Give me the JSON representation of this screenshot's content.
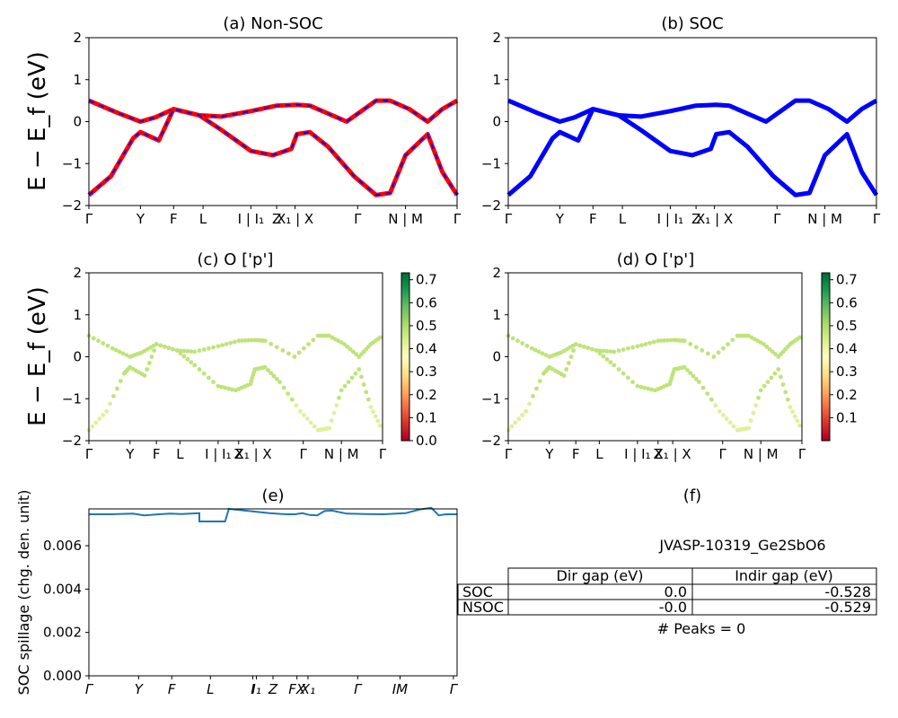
{
  "chart_data": [
    {
      "id": "a",
      "type": "line",
      "title": "(a) Non-SOC",
      "ylabel": "E − E_f (eV)",
      "ylim": [
        -2,
        2
      ],
      "yticks": [
        "2",
        "1",
        "0",
        "−1",
        "−2"
      ],
      "kpath_labels": [
        "Γ",
        "Y",
        "F",
        "L",
        "I | I₁",
        "Z",
        "X₁ | X",
        "Γ",
        "N | M",
        "Γ"
      ],
      "series": [
        {
          "name": "upper band",
          "color": "#ff0000",
          "dash_color": "#0000ff",
          "x": [
            0,
            0.08,
            0.14,
            0.18,
            0.23,
            0.3,
            0.36,
            0.44,
            0.51,
            0.565,
            0.6,
            0.7,
            0.78,
            0.818,
            0.87,
            0.92,
            0.96,
            1.0
          ],
          "y": [
            0.5,
            0.2,
            0.0,
            0.1,
            0.3,
            0.15,
            0.12,
            0.25,
            0.38,
            0.4,
            0.38,
            0.0,
            0.5,
            0.5,
            0.3,
            0.0,
            0.3,
            0.5
          ]
        },
        {
          "name": "lower band",
          "color": "#ff0000",
          "dash_color": "#0000ff",
          "x": [
            0,
            0.06,
            0.12,
            0.14,
            0.19,
            0.23,
            0.3,
            0.36,
            0.44,
            0.5,
            0.55,
            0.565,
            0.6,
            0.65,
            0.72,
            0.78,
            0.818,
            0.86,
            0.92,
            0.96,
            1.0
          ],
          "y": [
            -1.75,
            -1.3,
            -0.4,
            -0.25,
            -0.45,
            0.3,
            0.15,
            -0.2,
            -0.7,
            -0.8,
            -0.65,
            -0.3,
            -0.25,
            -0.6,
            -1.3,
            -1.75,
            -1.7,
            -0.8,
            -0.3,
            -1.2,
            -1.75
          ]
        }
      ]
    },
    {
      "id": "b",
      "type": "line",
      "title": "(b) SOC",
      "ylim": [
        -2,
        2
      ],
      "yticks": [
        "2",
        "1",
        "0",
        "−1",
        "−2"
      ],
      "kpath_labels": [
        "Γ",
        "Y",
        "F",
        "L",
        "I | I₁",
        "Z",
        "X₁ | X",
        "Γ",
        "N | M",
        "Γ"
      ],
      "series": [
        {
          "name": "upper band",
          "color": "#0000ff",
          "x": [
            0,
            0.08,
            0.14,
            0.18,
            0.23,
            0.3,
            0.36,
            0.44,
            0.51,
            0.565,
            0.6,
            0.7,
            0.78,
            0.818,
            0.87,
            0.92,
            0.96,
            1.0
          ],
          "y": [
            0.5,
            0.2,
            0.0,
            0.1,
            0.3,
            0.15,
            0.12,
            0.25,
            0.38,
            0.4,
            0.38,
            0.0,
            0.5,
            0.5,
            0.3,
            0.0,
            0.3,
            0.5
          ]
        },
        {
          "name": "lower band",
          "color": "#0000ff",
          "x": [
            0,
            0.06,
            0.12,
            0.14,
            0.19,
            0.23,
            0.3,
            0.36,
            0.44,
            0.5,
            0.55,
            0.565,
            0.6,
            0.65,
            0.72,
            0.78,
            0.818,
            0.86,
            0.92,
            0.96,
            1.0
          ],
          "y": [
            -1.75,
            -1.3,
            -0.4,
            -0.25,
            -0.45,
            0.3,
            0.15,
            -0.2,
            -0.7,
            -0.8,
            -0.65,
            -0.3,
            -0.25,
            -0.6,
            -1.3,
            -1.75,
            -1.7,
            -0.8,
            -0.3,
            -1.2,
            -1.75
          ]
        }
      ]
    },
    {
      "id": "c",
      "type": "scatter",
      "title": "(c)  O ['p']",
      "ylabel": "E − E_f (eV)",
      "ylim": [
        -2,
        2
      ],
      "yticks": [
        "2",
        "1",
        "0",
        "−1",
        "−2"
      ],
      "kpath_labels": [
        "Γ",
        "Y",
        "F",
        "L",
        "I | I₁",
        "Z",
        "X₁ | X",
        "Γ",
        "N | M",
        "Γ"
      ],
      "colorbar": {
        "ticks": [
          "0.7",
          "0.6",
          "0.5",
          "0.4",
          "0.3",
          "0.2",
          "0.1",
          "0.0"
        ],
        "range": [
          0.0,
          0.73
        ],
        "cmap": "RdYlGn"
      },
      "point_value": 0.48
    },
    {
      "id": "d",
      "type": "scatter",
      "title": "(d) O ['p']",
      "ylim": [
        -2,
        2
      ],
      "yticks": [
        "2",
        "1",
        "0",
        "−1",
        "−2"
      ],
      "kpath_labels": [
        "Γ",
        "Y",
        "F",
        "L",
        "I | I₁",
        "Z",
        "X₁ | X",
        "Γ",
        "N | M",
        "Γ"
      ],
      "colorbar": {
        "ticks": [
          "0.7",
          "0.6",
          "0.5",
          "0.4",
          "0.3",
          "0.2",
          "0.1"
        ],
        "range": [
          0.0,
          0.73
        ],
        "cmap": "RdYlGn"
      },
      "point_value": 0.48
    },
    {
      "id": "e",
      "type": "line",
      "title": "(e)",
      "ylabel": "SOC spillage (chg. den. unit)",
      "ylim": [
        0.0,
        0.0077
      ],
      "yticks": [
        "0.006",
        "0.004",
        "0.002",
        "0.000"
      ],
      "kpath_labels": [
        "Γ",
        "Y",
        "F",
        "L",
        "I",
        "I₁",
        "Z",
        "FX",
        "X₁",
        "Γ",
        "IM",
        "Γ"
      ],
      "series": [
        {
          "name": "spillage",
          "color": "#1f77b4",
          "x": [
            0,
            0.06,
            0.12,
            0.15,
            0.19,
            0.22,
            0.25,
            0.3,
            0.3,
            0.37,
            0.38,
            0.49,
            0.52,
            0.54,
            0.56,
            0.58,
            0.6,
            0.62,
            0.64,
            0.66,
            0.7,
            0.75,
            0.8,
            0.86,
            0.9,
            0.93,
            0.95,
            0.97,
            1.0
          ],
          "y": [
            0.00745,
            0.00745,
            0.00748,
            0.0074,
            0.00745,
            0.00748,
            0.00746,
            0.0075,
            0.00712,
            0.00712,
            0.0077,
            0.0075,
            0.00747,
            0.00745,
            0.00745,
            0.0075,
            0.00742,
            0.0074,
            0.0076,
            0.00762,
            0.00748,
            0.00746,
            0.00745,
            0.0075,
            0.00768,
            0.00775,
            0.0074,
            0.00745,
            0.00745
          ]
        }
      ]
    }
  ],
  "panel_f": {
    "title": "(f)",
    "material": "JVASP-10319_Ge2SbO6",
    "table": {
      "headers": [
        "Dir gap (eV)",
        "Indir gap (eV)"
      ],
      "rows": [
        {
          "label": "SOC",
          "dir": "0.0",
          "indir": "-0.528"
        },
        {
          "label": "NSOC",
          "dir": "-0.0",
          "indir": "-0.529"
        }
      ]
    },
    "peaks_text": "# Peaks = 0"
  }
}
